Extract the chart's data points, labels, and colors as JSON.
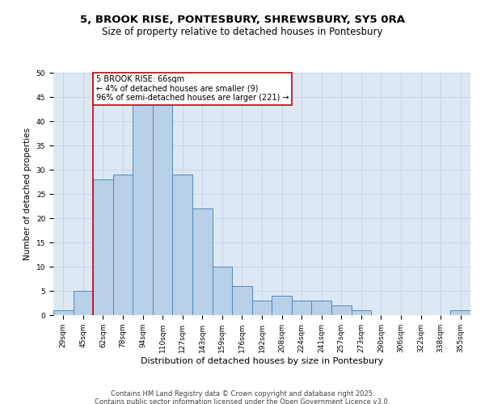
{
  "title_line1": "5, BROOK RISE, PONTESBURY, SHREWSBURY, SY5 0RA",
  "title_line2": "Size of property relative to detached houses in Pontesbury",
  "xlabel": "Distribution of detached houses by size in Pontesbury",
  "ylabel": "Number of detached properties",
  "categories": [
    "29sqm",
    "45sqm",
    "62sqm",
    "78sqm",
    "94sqm",
    "110sqm",
    "127sqm",
    "143sqm",
    "159sqm",
    "176sqm",
    "192sqm",
    "208sqm",
    "224sqm",
    "241sqm",
    "257sqm",
    "273sqm",
    "290sqm",
    "306sqm",
    "322sqm",
    "338sqm",
    "355sqm"
  ],
  "values": [
    1,
    5,
    28,
    29,
    46,
    46,
    29,
    22,
    10,
    6,
    3,
    4,
    3,
    3,
    2,
    1,
    0,
    0,
    0,
    0,
    1
  ],
  "bar_facecolor": "#b8d0e8",
  "bar_edgecolor": "#5588bb",
  "annotation_text": "5 BROOK RISE: 66sqm\n← 4% of detached houses are smaller (9)\n96% of semi-detached houses are larger (221) →",
  "annotation_box_color": "#ffffff",
  "annotation_box_edgecolor": "#cc0000",
  "red_line_color": "#cc0000",
  "ylim": [
    0,
    50
  ],
  "yticks": [
    0,
    5,
    10,
    15,
    20,
    25,
    30,
    35,
    40,
    45,
    50
  ],
  "grid_color": "#c8d4e8",
  "bg_color": "#dde8f5",
  "footer_line1": "Contains HM Land Registry data © Crown copyright and database right 2025.",
  "footer_line2": "Contains public sector information licensed under the Open Government Licence v3.0.",
  "title_fontsize": 9.5,
  "subtitle_fontsize": 8.5,
  "xlabel_fontsize": 8,
  "ylabel_fontsize": 7.5,
  "tick_fontsize": 6.5,
  "annotation_fontsize": 7,
  "footer_fontsize": 6
}
